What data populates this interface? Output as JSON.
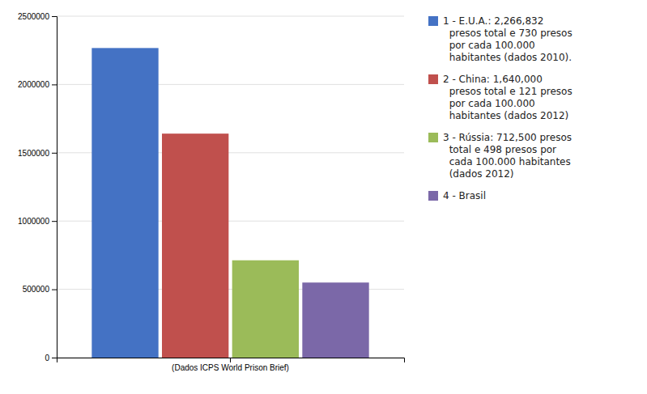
{
  "chart_data": {
    "type": "bar",
    "categories": [
      "(Dados ICPS World Prison Brief)"
    ],
    "series": [
      {
        "name": "1 - E.U.A.: 2,266,832\n  presos total e 730 presos\n  por cada 100.000\n  habitantes (dados 2010).",
        "color": "#4472C4",
        "values": [
          2266832
        ]
      },
      {
        "name": "2 - China: 1,640,000\n  presos total e 121 presos\n  por cada 100.000\n  habitantes (dados 2012)",
        "color": "#C0504D",
        "values": [
          1640000
        ]
      },
      {
        "name": "3 - Rússia: 712,500 presos\n  total e 498 presos por\n  cada 100.000 habitantes\n  (dados 2012)",
        "color": "#9BBB59",
        "values": [
          712500
        ]
      },
      {
        "name": "4 - Brasil",
        "color": "#7B68A8",
        "values": [
          549577
        ]
      }
    ],
    "ylim": [
      0,
      2500000
    ],
    "yticks": [
      0,
      500000,
      1000000,
      1500000,
      2000000,
      2500000
    ],
    "grid": true,
    "legend": "right"
  }
}
